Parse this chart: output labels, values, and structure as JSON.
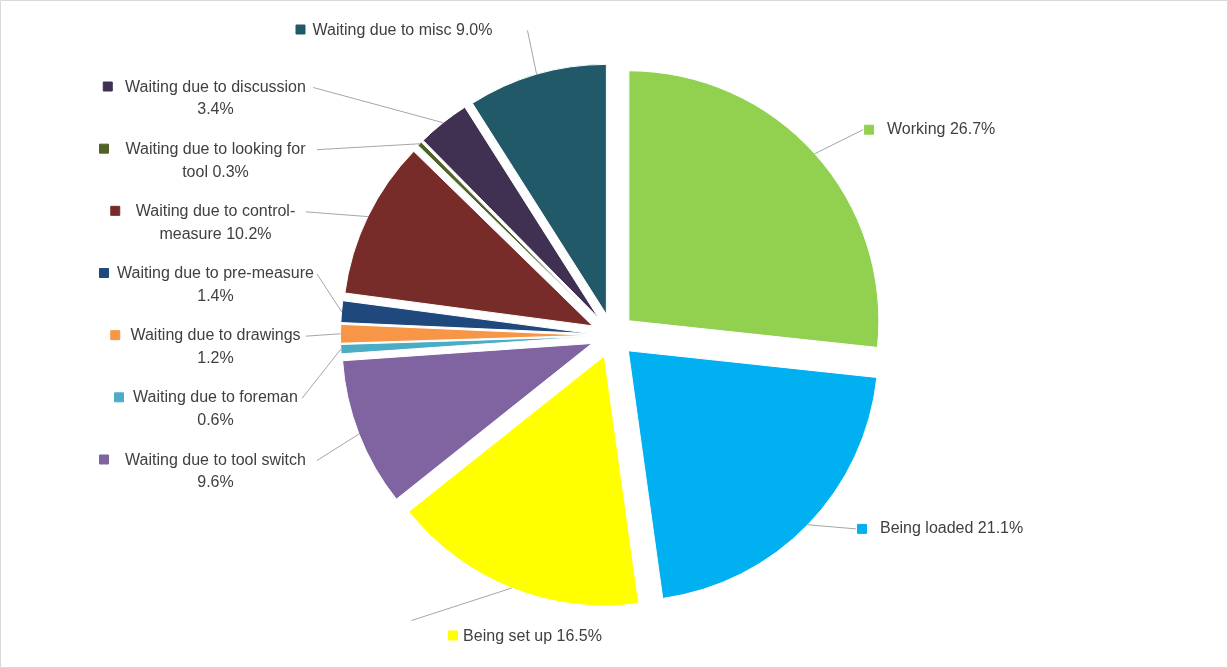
{
  "chart_data": {
    "type": "pie",
    "categories": [
      "Working",
      "Being loaded",
      "Being set up",
      "Waiting due to tool switch",
      "Waiting due to foreman",
      "Waiting due to drawings",
      "Waiting due to pre-measure",
      "Waiting due to control-measure",
      "Waiting due to looking for tool",
      "Waiting due to discussion",
      "Waiting due to misc"
    ],
    "values": [
      26.7,
      21.1,
      16.5,
      9.6,
      0.6,
      1.2,
      1.4,
      10.2,
      0.3,
      3.4,
      9.0
    ],
    "value_labels": [
      "26.7%",
      "21.1%",
      "16.5%",
      "9.6%",
      "0.6%",
      "1.2%",
      "1.4%",
      "10.2%",
      "0.3%",
      "3.4%",
      "9.0%"
    ],
    "colors": [
      "#92d050",
      "#00b0f0",
      "#ffff00",
      "#8064a2",
      "#4bacc6",
      "#f79646",
      "#1f497d",
      "#772c2a",
      "#4f6228",
      "#403152",
      "#215968"
    ],
    "legend": "left"
  }
}
